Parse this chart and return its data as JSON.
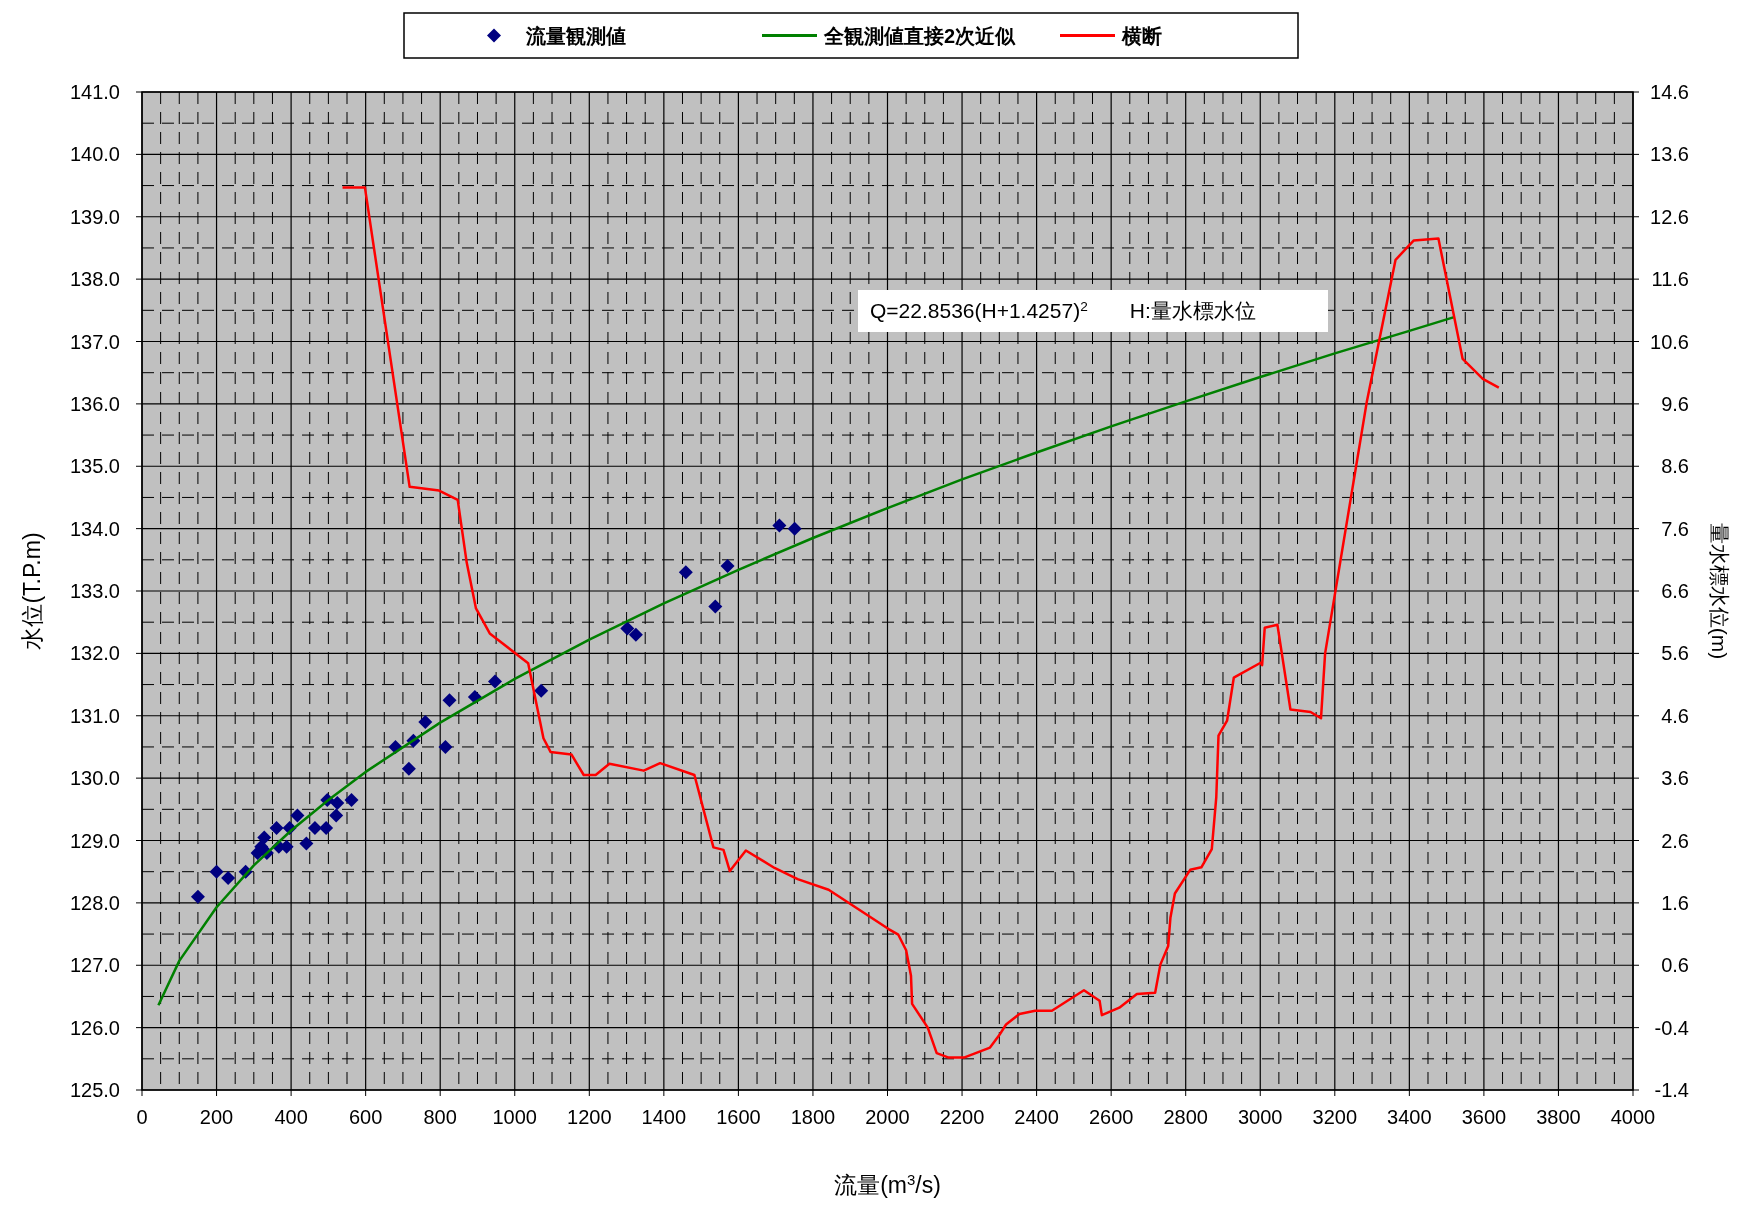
{
  "chart_data": {
    "type": "scatter",
    "xlabel": "流量(m$^{3}$/s)",
    "ylabel": "水位(T.P.m)",
    "y2label": "量水標水位(m)",
    "xlim": [
      0,
      4000
    ],
    "xticks": [
      0,
      200,
      400,
      600,
      800,
      1000,
      1200,
      1400,
      1600,
      1800,
      2000,
      2200,
      2400,
      2600,
      2800,
      3000,
      3200,
      3400,
      3600,
      3800,
      4000
    ],
    "ylim": [
      125,
      141
    ],
    "yticks": [
      {
        "value": 125,
        "label": "125.0"
      },
      {
        "value": 126,
        "label": "126.0"
      },
      {
        "value": 127,
        "label": "127.0"
      },
      {
        "value": 128,
        "label": "128.0"
      },
      {
        "value": 129,
        "label": "129.0"
      },
      {
        "value": 130,
        "label": "130.0"
      },
      {
        "value": 131,
        "label": "131.0"
      },
      {
        "value": 132,
        "label": "132.0"
      },
      {
        "value": 133,
        "label": "133.0"
      },
      {
        "value": 134,
        "label": "134.0"
      },
      {
        "value": 135,
        "label": "135.0"
      },
      {
        "value": 136,
        "label": "136.0"
      },
      {
        "value": 137,
        "label": "137.0"
      },
      {
        "value": 138,
        "label": "138.0"
      },
      {
        "value": 139,
        "label": "139.0"
      },
      {
        "value": 140,
        "label": "140.0"
      },
      {
        "value": 141,
        "label": "141.0"
      }
    ],
    "y2lim": [
      -1.4,
      14.6
    ],
    "y2ticks": [
      -1.4,
      -0.4,
      0.6,
      1.6,
      2.6,
      3.6,
      4.6,
      5.6,
      6.6,
      7.6,
      8.6,
      9.6,
      10.6,
      11.6,
      12.6,
      13.6,
      14.6
    ],
    "grid": true,
    "legend": "top",
    "annotations": [
      "Q=22.8536(H+1.4257)$^{2}$　　H:量水標水位"
    ],
    "series": [
      {
        "name": "流量観測値",
        "marker": "diamond",
        "color": "#000080",
        "x": [
          150,
          200,
          231,
          278,
          310,
          320,
          328,
          335,
          361,
          367,
          388,
          396,
          417,
          441,
          464,
          494,
          497,
          521,
          524,
          562,
          680,
          716,
          728,
          760,
          814,
          825,
          893,
          947,
          1071,
          1302,
          1325,
          1459,
          1538,
          1571,
          1710,
          1751
        ],
        "values": [
          128.1,
          128.5,
          128.4,
          128.5,
          128.8,
          128.9,
          129.05,
          128.8,
          129.2,
          128.9,
          128.9,
          129.2,
          129.4,
          128.95,
          129.2,
          129.2,
          129.65,
          129.4,
          129.6,
          129.65,
          130.5,
          130.15,
          130.6,
          130.9,
          130.5,
          131.25,
          131.3,
          131.55,
          131.4,
          132.4,
          132.3,
          133.3,
          132.75,
          133.4,
          134.05,
          134.0
        ]
      },
      {
        "name": "全観測値直接2次近似",
        "type": "line",
        "color": "#008000",
        "x": [
          44,
          100,
          200,
          300,
          400,
          500,
          600,
          800,
          1000,
          1200,
          1400,
          1600,
          1800,
          2000,
          2200,
          2400,
          2600,
          2800,
          3000,
          3200,
          3400,
          3520
        ],
        "values": [
          126.36,
          127.07,
          127.93,
          128.6,
          129.16,
          129.65,
          130.1,
          130.89,
          131.59,
          132.22,
          132.8,
          133.34,
          133.85,
          134.33,
          134.79,
          135.22,
          135.64,
          136.04,
          136.43,
          136.81,
          137.17,
          137.39
        ]
      },
      {
        "name": "横断",
        "type": "line",
        "color": "#ff0000",
        "x": [
          538,
          598,
          718,
          797,
          847,
          871,
          896,
          933,
          1036,
          1077,
          1096,
          1152,
          1185,
          1217,
          1254,
          1346,
          1390,
          1482,
          1533,
          1560,
          1577,
          1620,
          1697,
          1759,
          1842,
          1919,
          2003,
          2029,
          2050,
          2063,
          2066,
          2108,
          2132,
          2164,
          2205,
          2275,
          2300,
          2318,
          2354,
          2396,
          2441,
          2527,
          2569,
          2575,
          2622,
          2669,
          2718,
          2732,
          2753,
          2759,
          2771,
          2812,
          2842,
          2870,
          2882,
          2888,
          2911,
          2929,
          3001,
          3005,
          3012,
          3046,
          3081,
          3135,
          3163,
          3174,
          3286,
          3363,
          3412,
          3478,
          3543,
          3597,
          3640
        ],
        "values": [
          139.47,
          139.47,
          134.67,
          134.61,
          134.46,
          133.46,
          132.72,
          132.32,
          131.84,
          130.64,
          130.42,
          130.38,
          130.05,
          130.05,
          130.23,
          130.12,
          130.24,
          130.05,
          128.89,
          128.85,
          128.51,
          128.84,
          128.56,
          128.38,
          128.21,
          127.91,
          127.58,
          127.49,
          127.24,
          126.83,
          126.38,
          126.0,
          125.59,
          125.52,
          125.52,
          125.68,
          125.88,
          126.05,
          126.22,
          126.27,
          126.27,
          126.6,
          126.43,
          126.2,
          126.32,
          126.54,
          126.56,
          127.01,
          127.31,
          127.76,
          128.15,
          128.53,
          128.57,
          128.86,
          129.69,
          130.68,
          130.92,
          131.61,
          131.85,
          131.81,
          132.41,
          132.46,
          131.1,
          131.06,
          130.96,
          132.0,
          136.04,
          138.31,
          138.62,
          138.65,
          136.72,
          136.4,
          136.26
        ]
      }
    ]
  }
}
